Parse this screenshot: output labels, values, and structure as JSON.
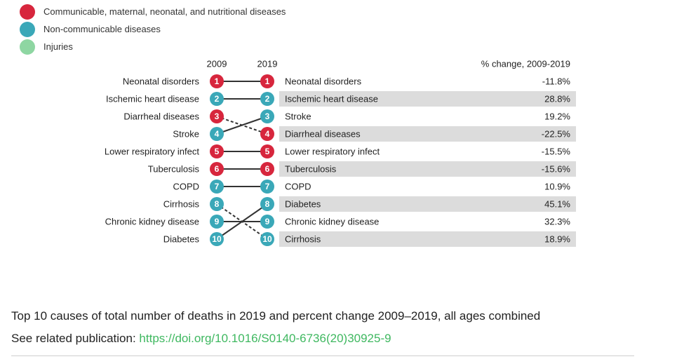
{
  "legend": {
    "items": [
      {
        "label": "Communicable, maternal, neonatal, and nutritional diseases",
        "color": "#d7263d"
      },
      {
        "label": "Non-communicable diseases",
        "color": "#3aa8b8"
      },
      {
        "label": "Injuries",
        "color": "#8ed6a2"
      }
    ]
  },
  "chart_data": {
    "type": "table",
    "columns": {
      "start_year": "2009",
      "end_year": "2019",
      "change_header": "% change, 2009-2019"
    },
    "category_colors": {
      "communicable": "#d7263d",
      "noncommunicable": "#3aa8b8",
      "injuries": "#8ed6a2"
    },
    "rank_2009": [
      {
        "rank": 1,
        "cause": "Neonatal disorders",
        "category": "communicable"
      },
      {
        "rank": 2,
        "cause": "Ischemic heart disease",
        "category": "noncommunicable"
      },
      {
        "rank": 3,
        "cause": "Diarrheal diseases",
        "category": "communicable"
      },
      {
        "rank": 4,
        "cause": "Stroke",
        "category": "noncommunicable"
      },
      {
        "rank": 5,
        "cause": "Lower respiratory infect",
        "category": "communicable"
      },
      {
        "rank": 6,
        "cause": "Tuberculosis",
        "category": "communicable"
      },
      {
        "rank": 7,
        "cause": "COPD",
        "category": "noncommunicable"
      },
      {
        "rank": 8,
        "cause": "Cirrhosis",
        "category": "noncommunicable"
      },
      {
        "rank": 9,
        "cause": "Chronic kidney disease",
        "category": "noncommunicable"
      },
      {
        "rank": 10,
        "cause": "Diabetes",
        "category": "noncommunicable"
      }
    ],
    "rank_2019": [
      {
        "rank": 1,
        "cause": "Neonatal disorders",
        "category": "communicable",
        "change": "-11.8%"
      },
      {
        "rank": 2,
        "cause": "Ischemic heart disease",
        "category": "noncommunicable",
        "change": "28.8%"
      },
      {
        "rank": 3,
        "cause": "Stroke",
        "category": "noncommunicable",
        "change": "19.2%"
      },
      {
        "rank": 4,
        "cause": "Diarrheal diseases",
        "category": "communicable",
        "change": "-22.5%"
      },
      {
        "rank": 5,
        "cause": "Lower respiratory infect",
        "category": "communicable",
        "change": "-15.5%"
      },
      {
        "rank": 6,
        "cause": "Tuberculosis",
        "category": "communicable",
        "change": "-15.6%"
      },
      {
        "rank": 7,
        "cause": "COPD",
        "category": "noncommunicable",
        "change": "10.9%"
      },
      {
        "rank": 8,
        "cause": "Diabetes",
        "category": "noncommunicable",
        "change": "45.1%"
      },
      {
        "rank": 9,
        "cause": "Chronic kidney disease",
        "category": "noncommunicable",
        "change": "32.3%"
      },
      {
        "rank": 10,
        "cause": "Cirrhosis",
        "category": "noncommunicable",
        "change": "18.9%"
      }
    ]
  },
  "caption": "Top 10 causes of total number of deaths in 2019 and percent change 2009–2019, all ages combined",
  "publication": {
    "label": "See related publication:",
    "link": "https://doi.org/10.1016/S0140-6736(20)30925-9"
  }
}
